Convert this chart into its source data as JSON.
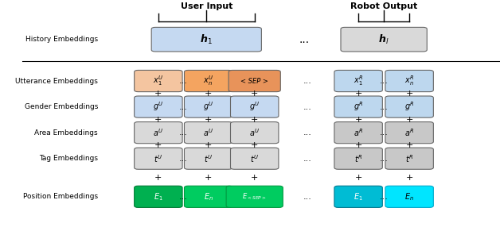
{
  "fig_width": 6.28,
  "fig_height": 2.86,
  "dpi": 100,
  "bg_color": "#ffffff",
  "row_labels": [
    "History Embeddings",
    "Utterance Embeddings",
    "Gender Embeddings",
    "Area Embeddings",
    "Tag Embeddings",
    "Position Embeddings"
  ],
  "colors": {
    "light_blue": "#c5d9f1",
    "light_orange": "#f4c5a0",
    "orange": "#f4a460",
    "sep_orange": "#e8935a",
    "light_gray": "#d9d9d9",
    "darker_gray": "#c8c8c8",
    "green_dark": "#00b050",
    "green_mid": "#00cc60",
    "cyan_dark": "#00bcd4",
    "cyan_light": "#00e5ff",
    "robot_blue": "#bdd7ee"
  }
}
